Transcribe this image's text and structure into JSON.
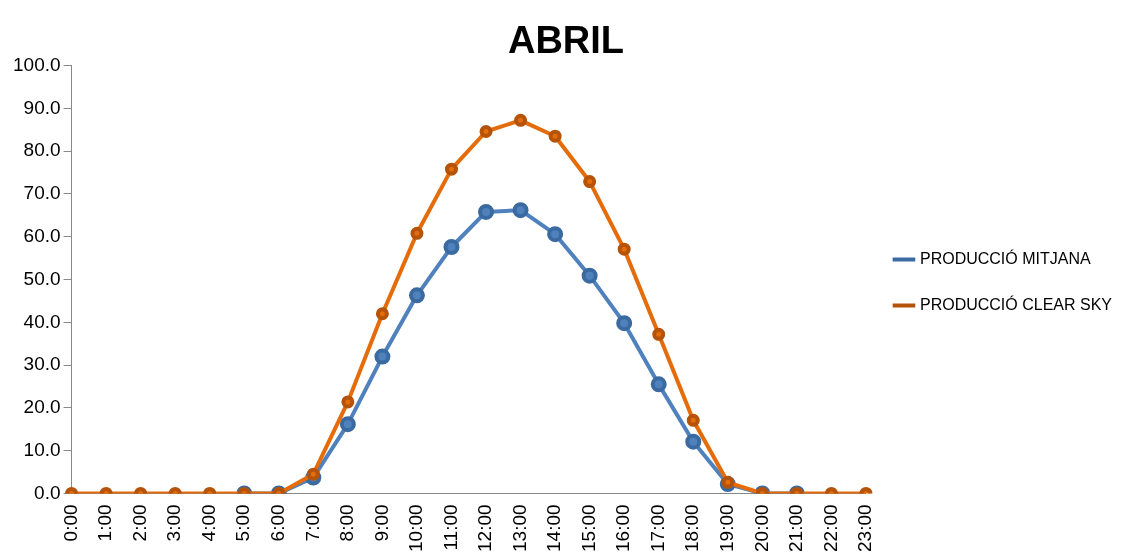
{
  "chart_data": {
    "type": "line",
    "title": "ABRIL",
    "categories": [
      "0:00",
      "1:00",
      "2:00",
      "3:00",
      "4:00",
      "5:00",
      "6:00",
      "7:00",
      "8:00",
      "9:00",
      "10:00",
      "11:00",
      "12:00",
      "13:00",
      "14:00",
      "15:00",
      "16:00",
      "17:00",
      "18:00",
      "19:00",
      "20:00",
      "21:00",
      "22:00",
      "23:00"
    ],
    "series": [
      {
        "name": "PRODUCCIÓ MITJANA",
        "color": "#4f81bd",
        "values": [
          null,
          null,
          null,
          null,
          null,
          0,
          0,
          3.7,
          16.2,
          32.0,
          46.3,
          57.6,
          65.8,
          66.2,
          60.6,
          50.9,
          39.8,
          25.5,
          12.1,
          2.2,
          0,
          0,
          null,
          null
        ]
      },
      {
        "name": "PRODUCCIÓ CLEAR SKY",
        "color": "#e46c0a",
        "values": [
          0,
          0,
          0,
          0,
          0,
          0,
          0,
          4.5,
          21.4,
          42.0,
          60.8,
          75.8,
          84.6,
          87.2,
          83.5,
          72.9,
          57.1,
          37.2,
          17.1,
          2.6,
          0,
          0,
          0,
          0
        ]
      }
    ],
    "ylim": [
      0,
      100
    ],
    "yticks": [
      {
        "value": 0,
        "label": "0.0"
      },
      {
        "value": 10,
        "label": "10.0"
      },
      {
        "value": 20,
        "label": "20.0"
      },
      {
        "value": 30,
        "label": "30.0"
      },
      {
        "value": 40,
        "label": "40.0"
      },
      {
        "value": 50,
        "label": "50.0"
      },
      {
        "value": 60,
        "label": "60.0"
      },
      {
        "value": 70,
        "label": "70.0"
      },
      {
        "value": 80,
        "label": "80.0"
      },
      {
        "value": 90,
        "label": "90.0"
      },
      {
        "value": 100,
        "label": "100.0"
      }
    ],
    "grid": false,
    "legend": "right",
    "marker": "circle",
    "line_style": "solid"
  }
}
